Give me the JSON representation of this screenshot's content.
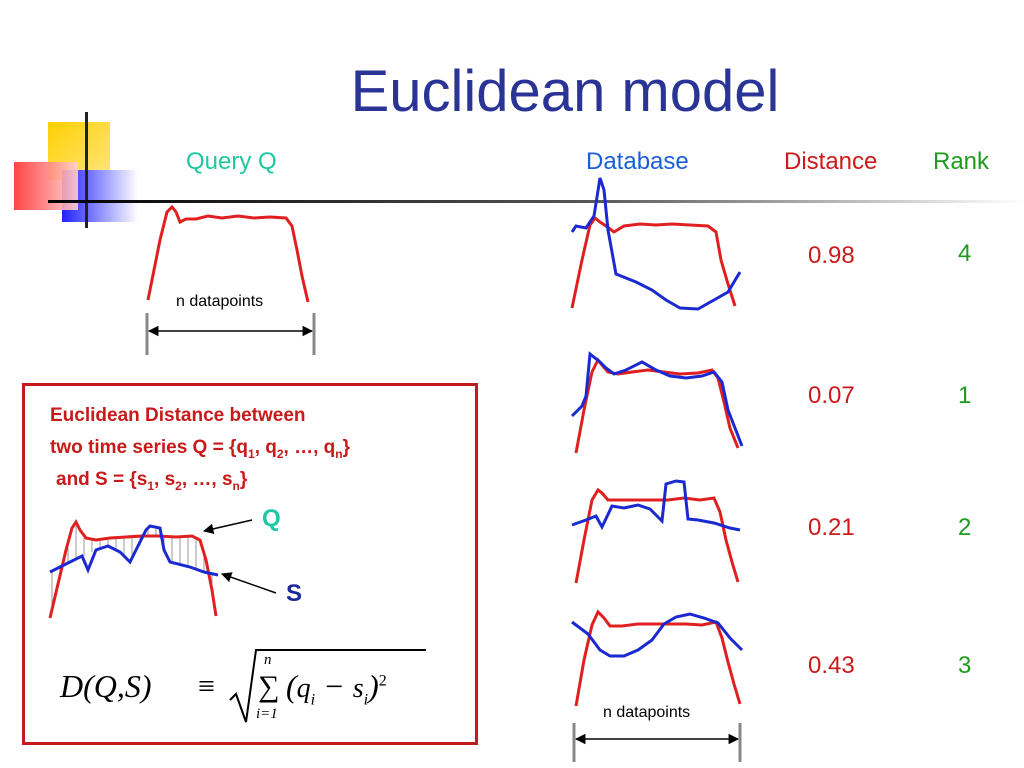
{
  "title": "Euclidean model",
  "headers": {
    "query": "Query Q",
    "database": "Database",
    "distance": "Distance",
    "rank": "Rank"
  },
  "rows": [
    {
      "distance": "0.98",
      "rank": "4"
    },
    {
      "distance": "0.07",
      "rank": "1"
    },
    {
      "distance": "0.21",
      "rank": "2"
    },
    {
      "distance": "0.43",
      "rank": "3"
    }
  ],
  "n_datapoints_label": "n datapoints",
  "definition": {
    "line1": "Euclidean Distance between",
    "line2_prefix": "two time series Q = {q",
    "line3_prefix": "and S = {s",
    "q_label": "Q",
    "s_label": "S"
  },
  "formula": {
    "lhs": "D(Q,S)",
    "equiv": "≡",
    "sum_upper": "n",
    "sum_lower": "i=1",
    "term": "(q_i − s_i)^2"
  },
  "colors": {
    "title": "#2a3396",
    "query_series": "#e02020",
    "database_series": "#1a2ad0",
    "distance": "#cc1a1a",
    "rank": "#1e9a1e",
    "box_border": "#c81a1a"
  }
}
